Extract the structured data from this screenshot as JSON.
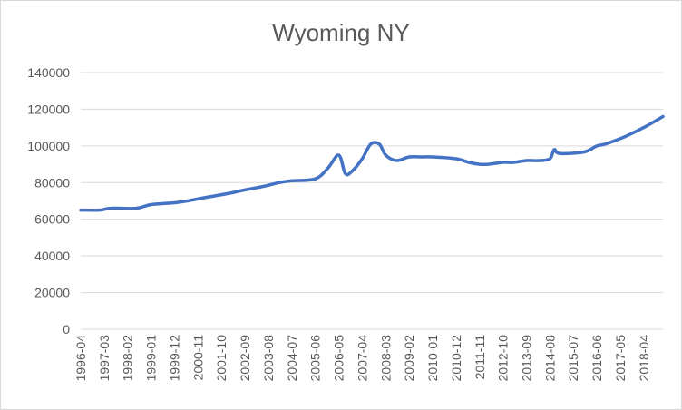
{
  "chart_data": {
    "type": "line",
    "title": "Wyoming NY",
    "xlabel": "",
    "ylabel": "",
    "ylim": [
      0,
      140000
    ],
    "y_ticks": [
      0,
      20000,
      40000,
      60000,
      80000,
      100000,
      120000,
      140000
    ],
    "x_tick_labels": [
      "1996-04",
      "1997-03",
      "1998-02",
      "1999-01",
      "1999-12",
      "2000-11",
      "2001-10",
      "2002-09",
      "2003-08",
      "2004-07",
      "2005-06",
      "2006-05",
      "2007-04",
      "2008-03",
      "2009-02",
      "2010-01",
      "2010-12",
      "2011-11",
      "2012-10",
      "2013-09",
      "2014-08",
      "2015-07",
      "2016-06",
      "2017-05",
      "2018-04"
    ],
    "grid": "horizontal",
    "legend": "none",
    "line_color": "#4472c4",
    "series": [
      {
        "x": [
          "1996-04",
          "1997-01",
          "1997-06",
          "1998-06",
          "1999-01",
          "1999-12",
          "2000-06",
          "2001-03",
          "2002-01",
          "2002-09",
          "2003-06",
          "2004-01",
          "2004-07",
          "2005-06",
          "2005-12",
          "2006-05",
          "2006-08",
          "2006-11",
          "2007-04",
          "2007-08",
          "2007-12",
          "2008-03",
          "2008-08",
          "2009-02",
          "2009-08",
          "2010-01",
          "2010-12",
          "2011-06",
          "2011-11",
          "2012-03",
          "2012-10",
          "2013-03",
          "2013-09",
          "2014-03",
          "2014-08",
          "2014-10",
          "2014-12",
          "2015-07",
          "2016-01",
          "2016-06",
          "2016-10",
          "2017-05",
          "2017-09",
          "2018-04",
          "2018-10",
          "2019-01"
        ],
        "values": [
          65000,
          65000,
          66000,
          66000,
          68000,
          69000,
          70000,
          72000,
          74000,
          76000,
          78000,
          80000,
          81000,
          82000,
          88000,
          95000,
          85000,
          86000,
          93000,
          101000,
          101000,
          95000,
          92000,
          94000,
          94000,
          94000,
          93000,
          91000,
          90000,
          90000,
          91000,
          91000,
          92000,
          92000,
          93000,
          98000,
          96000,
          96000,
          97000,
          100000,
          101000,
          104000,
          106000,
          110000,
          114000,
          116000
        ]
      }
    ]
  }
}
